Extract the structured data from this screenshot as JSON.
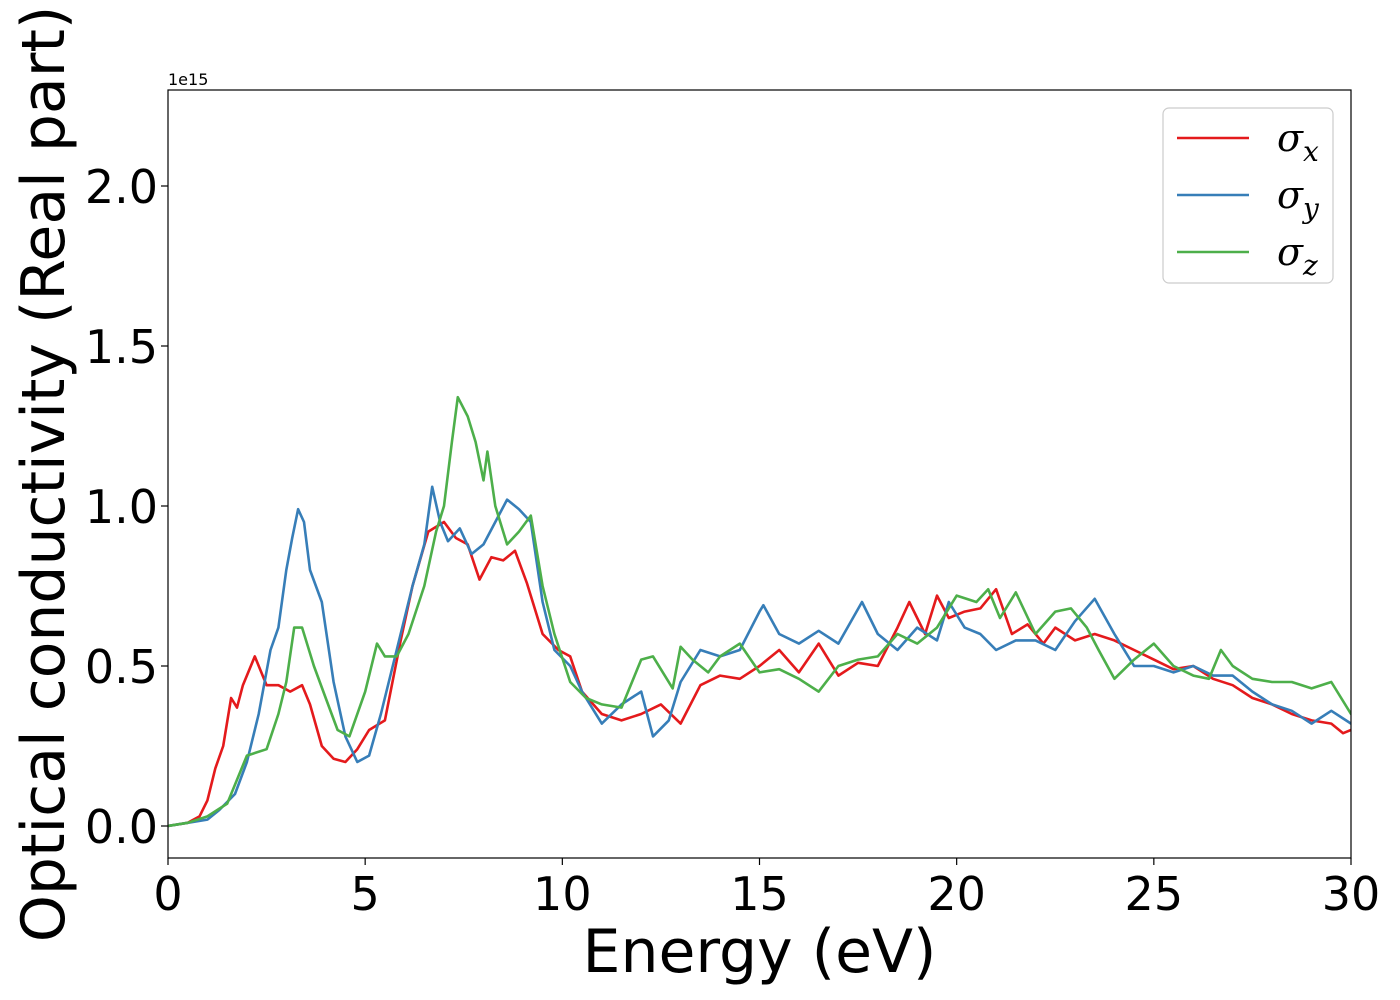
{
  "chart_data": {
    "type": "line",
    "xlabel": "Energy (eV)",
    "ylabel": "Optical conductivity (Real part)",
    "y_offset_label": "1e15",
    "xlim": [
      0,
      30
    ],
    "ylim": [
      -0.1,
      2.3
    ],
    "xticks": [
      0,
      5,
      10,
      15,
      20,
      25,
      30
    ],
    "xtick_labels": [
      "0",
      "5",
      "10",
      "15",
      "20",
      "25",
      "30"
    ],
    "yticks": [
      0.0,
      0.5,
      1.0,
      1.5,
      2.0
    ],
    "ytick_labels": [
      "0.0",
      "0.5",
      "1.0",
      "1.5",
      "2.0"
    ],
    "grid": false,
    "legend_position": "top-right",
    "series": [
      {
        "name": "σx",
        "legend_base": "σ",
        "legend_sub": "x",
        "color": "#e41a1c",
        "x": [
          0,
          0.5,
          0.8,
          1.0,
          1.2,
          1.4,
          1.6,
          1.75,
          1.9,
          2.2,
          2.5,
          2.8,
          3.1,
          3.4,
          3.6,
          3.9,
          4.2,
          4.5,
          4.8,
          5.1,
          5.5,
          5.9,
          6.2,
          6.6,
          7.0,
          7.3,
          7.6,
          7.9,
          8.2,
          8.5,
          8.8,
          9.1,
          9.5,
          9.9,
          10.2,
          10.5,
          11.0,
          11.5,
          12.0,
          12.5,
          13.0,
          13.5,
          14.0,
          14.5,
          15.0,
          15.5,
          16.0,
          16.5,
          17.0,
          17.5,
          18.0,
          18.5,
          18.8,
          19.2,
          19.5,
          19.8,
          20.2,
          20.6,
          21.0,
          21.4,
          21.8,
          22.2,
          22.5,
          23.0,
          23.5,
          24.0,
          24.5,
          25.0,
          25.5,
          26.0,
          26.5,
          27.0,
          27.5,
          28.0,
          28.5,
          29.0,
          29.5,
          29.8,
          30.0
        ],
        "values": [
          0.0,
          0.01,
          0.03,
          0.08,
          0.18,
          0.25,
          0.4,
          0.37,
          0.44,
          0.53,
          0.44,
          0.44,
          0.42,
          0.44,
          0.38,
          0.25,
          0.21,
          0.2,
          0.24,
          0.3,
          0.33,
          0.58,
          0.75,
          0.92,
          0.95,
          0.9,
          0.88,
          0.77,
          0.84,
          0.83,
          0.86,
          0.76,
          0.6,
          0.55,
          0.53,
          0.42,
          0.35,
          0.33,
          0.35,
          0.38,
          0.32,
          0.44,
          0.47,
          0.46,
          0.5,
          0.55,
          0.48,
          0.57,
          0.47,
          0.51,
          0.5,
          0.62,
          0.7,
          0.6,
          0.72,
          0.65,
          0.67,
          0.68,
          0.74,
          0.6,
          0.63,
          0.57,
          0.62,
          0.58,
          0.6,
          0.58,
          0.55,
          0.52,
          0.49,
          0.5,
          0.46,
          0.44,
          0.4,
          0.38,
          0.35,
          0.33,
          0.32,
          0.29,
          0.3
        ]
      },
      {
        "name": "σy",
        "legend_base": "σ",
        "legend_sub": "y",
        "color": "#377eb8",
        "x": [
          0,
          0.5,
          1.0,
          1.3,
          1.7,
          2.0,
          2.3,
          2.6,
          2.8,
          3.0,
          3.15,
          3.3,
          3.45,
          3.6,
          3.9,
          4.2,
          4.5,
          4.8,
          5.1,
          5.4,
          5.8,
          6.2,
          6.5,
          6.7,
          6.9,
          7.1,
          7.4,
          7.7,
          8.0,
          8.3,
          8.6,
          8.9,
          9.2,
          9.5,
          9.8,
          10.2,
          10.5,
          11.0,
          11.5,
          12.0,
          12.3,
          12.7,
          13.0,
          13.5,
          14.0,
          14.5,
          15.0,
          15.1,
          15.5,
          16.0,
          16.5,
          17.0,
          17.6,
          18.0,
          18.5,
          19.0,
          19.5,
          19.8,
          20.2,
          20.6,
          21.0,
          21.5,
          22.0,
          22.5,
          23.0,
          23.5,
          24.0,
          24.5,
          25.0,
          25.5,
          26.0,
          26.5,
          27.0,
          27.5,
          28.0,
          28.5,
          29.0,
          29.5,
          30.0
        ],
        "values": [
          0.0,
          0.01,
          0.02,
          0.05,
          0.1,
          0.2,
          0.35,
          0.55,
          0.62,
          0.8,
          0.9,
          0.99,
          0.95,
          0.8,
          0.7,
          0.45,
          0.28,
          0.2,
          0.22,
          0.35,
          0.55,
          0.75,
          0.88,
          1.06,
          0.95,
          0.89,
          0.93,
          0.85,
          0.88,
          0.95,
          1.02,
          0.99,
          0.95,
          0.7,
          0.55,
          0.5,
          0.42,
          0.32,
          0.38,
          0.42,
          0.28,
          0.33,
          0.45,
          0.55,
          0.53,
          0.55,
          0.67,
          0.69,
          0.6,
          0.57,
          0.61,
          0.57,
          0.7,
          0.6,
          0.55,
          0.62,
          0.58,
          0.7,
          0.62,
          0.6,
          0.55,
          0.58,
          0.58,
          0.55,
          0.64,
          0.71,
          0.6,
          0.5,
          0.5,
          0.48,
          0.5,
          0.47,
          0.47,
          0.42,
          0.38,
          0.36,
          0.32,
          0.36,
          0.32
        ]
      },
      {
        "name": "σz",
        "legend_base": "σ",
        "legend_sub": "z",
        "color": "#4daf4a",
        "x": [
          0,
          0.5,
          1.0,
          1.5,
          2.0,
          2.5,
          2.8,
          3.0,
          3.2,
          3.4,
          3.7,
          4.0,
          4.3,
          4.6,
          5.0,
          5.3,
          5.5,
          5.8,
          6.1,
          6.5,
          6.8,
          7.0,
          7.2,
          7.35,
          7.6,
          7.8,
          8.0,
          8.1,
          8.3,
          8.6,
          8.9,
          9.2,
          9.5,
          9.8,
          10.2,
          10.6,
          11.0,
          11.5,
          12.0,
          12.3,
          12.8,
          13.0,
          13.3,
          13.7,
          14.0,
          14.5,
          15.0,
          15.5,
          16.0,
          16.5,
          17.0,
          17.5,
          18.0,
          18.5,
          19.0,
          19.5,
          20.0,
          20.5,
          20.8,
          21.1,
          21.5,
          22.0,
          22.5,
          22.9,
          23.3,
          23.6,
          24.0,
          24.5,
          25.0,
          25.5,
          26.0,
          26.4,
          26.7,
          27.0,
          27.5,
          28.0,
          28.5,
          29.0,
          29.5,
          30.0
        ],
        "values": [
          0.0,
          0.01,
          0.03,
          0.07,
          0.22,
          0.24,
          0.35,
          0.45,
          0.62,
          0.62,
          0.5,
          0.4,
          0.3,
          0.28,
          0.42,
          0.57,
          0.53,
          0.53,
          0.6,
          0.75,
          0.92,
          1.0,
          1.2,
          1.34,
          1.28,
          1.2,
          1.08,
          1.17,
          1.0,
          0.88,
          0.92,
          0.97,
          0.75,
          0.6,
          0.45,
          0.4,
          0.38,
          0.37,
          0.52,
          0.53,
          0.43,
          0.56,
          0.52,
          0.48,
          0.53,
          0.57,
          0.48,
          0.49,
          0.46,
          0.42,
          0.5,
          0.52,
          0.53,
          0.6,
          0.57,
          0.62,
          0.72,
          0.7,
          0.74,
          0.65,
          0.73,
          0.6,
          0.67,
          0.68,
          0.62,
          0.55,
          0.46,
          0.52,
          0.57,
          0.5,
          0.47,
          0.46,
          0.55,
          0.5,
          0.46,
          0.45,
          0.45,
          0.43,
          0.45,
          0.35
        ]
      }
    ]
  }
}
